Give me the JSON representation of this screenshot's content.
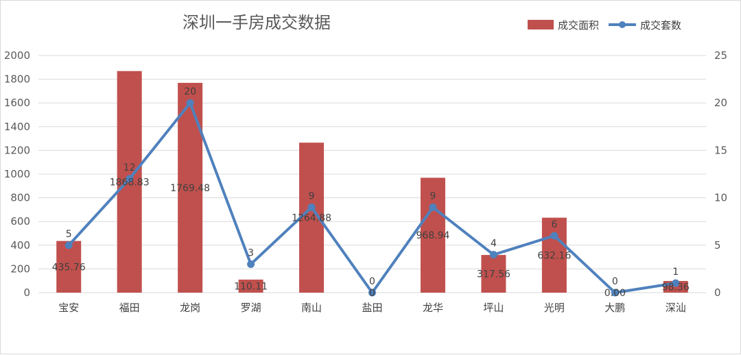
{
  "chart_data": {
    "type": "bar",
    "title": "深圳一手房成交数据",
    "categories": [
      "宝安",
      "福田",
      "龙岗",
      "罗湖",
      "南山",
      "盐田",
      "龙华",
      "坪山",
      "光明",
      "大鹏",
      "深汕"
    ],
    "series": [
      {
        "name": "成交面积",
        "type": "bar",
        "axis": "left",
        "color": "#C0504D",
        "values": [
          435.76,
          1868.83,
          1769.48,
          110.11,
          1264.88,
          0,
          968.94,
          317.56,
          632.16,
          0.0,
          98.36
        ],
        "labels": [
          "435.76",
          "1868.83",
          "1769.48",
          "110.11",
          "1264.88",
          "0",
          "968.94",
          "317.56",
          "632.16",
          "0.00",
          "98.36"
        ]
      },
      {
        "name": "成交套数",
        "type": "line",
        "axis": "right",
        "color": "#4F81BD",
        "values": [
          5,
          12,
          20,
          3,
          9,
          0,
          9,
          4,
          6,
          0,
          1
        ],
        "labels": [
          "5",
          "12",
          "20",
          "3",
          "9",
          "0",
          "9",
          "4",
          "6",
          "0",
          "1"
        ]
      }
    ],
    "y_left": {
      "range": [
        0,
        2000
      ],
      "ticks": [
        "0",
        "200",
        "400",
        "600",
        "800",
        "1000",
        "1200",
        "1400",
        "1600",
        "1800",
        "2000"
      ]
    },
    "y_right": {
      "range": [
        0,
        25
      ],
      "ticks": [
        "0",
        "5",
        "10",
        "15",
        "20",
        "25"
      ]
    },
    "gridlines": true,
    "legend_position": "top-right",
    "gridline_color": "#d9d9d9"
  }
}
